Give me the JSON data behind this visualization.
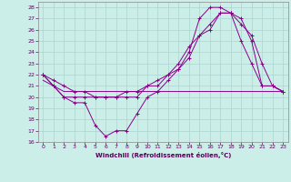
{
  "xlabel": "Windchill (Refroidissement éolien,°C)",
  "background_color": "#cceee8",
  "grid_color": "#aad4ce",
  "line_color": "#880088",
  "xlim": [
    -0.5,
    23.5
  ],
  "ylim": [
    16,
    28.5
  ],
  "xticks": [
    0,
    1,
    2,
    3,
    4,
    5,
    6,
    7,
    8,
    9,
    10,
    11,
    12,
    13,
    14,
    15,
    16,
    17,
    18,
    19,
    20,
    21,
    22,
    23
  ],
  "yticks": [
    16,
    17,
    18,
    19,
    20,
    21,
    22,
    23,
    24,
    25,
    26,
    27,
    28
  ],
  "series": [
    {
      "x": [
        0,
        1,
        2,
        3,
        4,
        5,
        6,
        7,
        8,
        9,
        10,
        11,
        12,
        13,
        14,
        15,
        16,
        17,
        18,
        19,
        20,
        21,
        22,
        23
      ],
      "y": [
        22,
        21,
        20,
        19.5,
        19.5,
        17.5,
        16.5,
        17,
        17,
        18.5,
        20,
        20.5,
        21.5,
        22.5,
        24.0,
        27.0,
        28.0,
        28.0,
        27.5,
        25.0,
        23.0,
        21.0,
        21.0,
        20.5
      ],
      "marker": "+"
    },
    {
      "x": [
        0,
        1,
        2,
        3,
        4,
        5,
        6,
        7,
        8,
        9,
        10,
        11,
        12,
        13,
        14,
        15,
        16,
        17,
        18,
        19,
        20,
        21,
        22,
        23
      ],
      "y": [
        21.5,
        21.0,
        20.5,
        20.5,
        20.5,
        20.5,
        20.5,
        20.5,
        20.5,
        20.5,
        20.5,
        20.5,
        20.5,
        20.5,
        20.5,
        20.5,
        20.5,
        20.5,
        20.5,
        20.5,
        20.5,
        20.5,
        20.5,
        20.5
      ],
      "marker": null
    },
    {
      "x": [
        0,
        1,
        2,
        3,
        4,
        5,
        6,
        7,
        8,
        9,
        10,
        11,
        12,
        13,
        14,
        15,
        16,
        17,
        18,
        19,
        20,
        21,
        22,
        23
      ],
      "y": [
        22,
        21,
        20,
        20,
        20,
        20,
        20,
        20,
        20,
        20,
        21,
        21,
        22,
        22.5,
        23.5,
        25.5,
        26,
        27.5,
        27.5,
        27,
        25,
        21,
        21,
        20.5
      ],
      "marker": "+"
    },
    {
      "x": [
        0,
        1,
        2,
        3,
        4,
        5,
        6,
        7,
        8,
        9,
        10,
        11,
        12,
        13,
        14,
        15,
        16,
        17,
        18,
        19,
        20,
        21,
        22,
        23
      ],
      "y": [
        22,
        21.5,
        21.0,
        20.5,
        20.5,
        20.0,
        20.0,
        20.0,
        20.5,
        20.5,
        21.0,
        21.5,
        22.0,
        23.0,
        24.5,
        25.5,
        26.5,
        27.5,
        27.5,
        26.5,
        25.5,
        23.0,
        21.0,
        20.5
      ],
      "marker": "+"
    }
  ]
}
